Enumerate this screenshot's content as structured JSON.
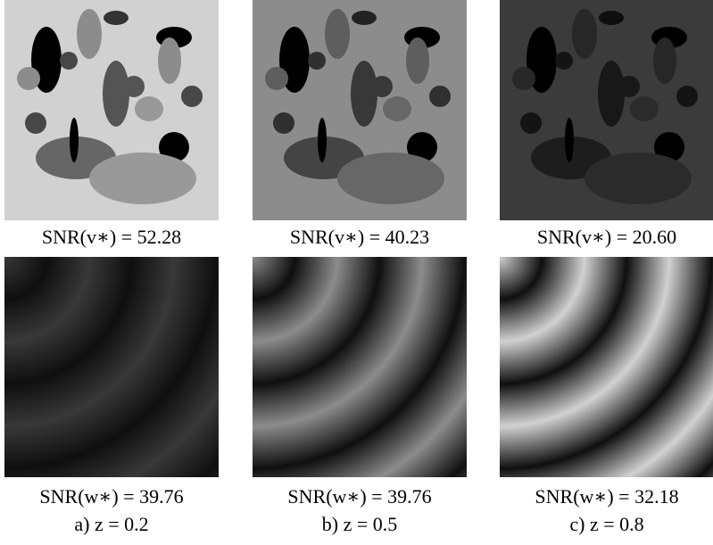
{
  "panels": [
    {
      "top_caption": "SNR(v∗) = 52.28",
      "bottom_caption": "SNR(w∗) = 39.76",
      "label": "a) z = 0.2"
    },
    {
      "top_caption": "SNR(v∗) = 40.23",
      "bottom_caption": "SNR(w∗) = 39.76",
      "label": "b) z = 0.5"
    },
    {
      "top_caption": "SNR(v∗) = 20.60",
      "bottom_caption": "SNR(w∗) = 32.18",
      "label": "c) z = 0.8"
    }
  ]
}
